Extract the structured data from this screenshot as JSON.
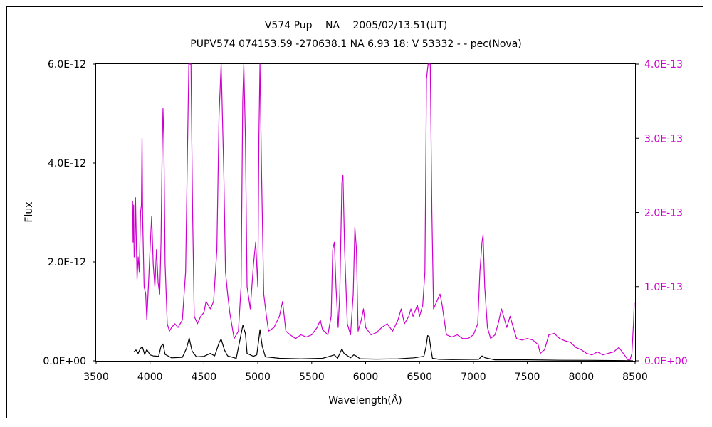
{
  "chart_data": {
    "type": "line",
    "title": "V574 Pup　 NA　 2005/02/13.51(UT)",
    "subtitle": "PUPV574 074153.59 -270638.1 NA 6.93 18: V 53332 - - pec(Nova)",
    "xlabel": "Wavelength(Å)",
    "ylabel": "Flux",
    "xlim": [
      3500,
      8500
    ],
    "ylim_left": [
      0,
      6e-12
    ],
    "ylim_right": [
      0,
      4e-13
    ],
    "x_ticks": [
      "3500",
      "4000",
      "4500",
      "5000",
      "5500",
      "6000",
      "6500",
      "7000",
      "7500",
      "8000",
      "8500"
    ],
    "y_ticks_left": [
      "0.0E+00",
      "2.0E-12",
      "4.0E-12",
      "6.0E-12"
    ],
    "y_ticks_right": [
      "0.0E+00",
      "1.0E-13",
      "2.0E-13",
      "3.0E-13",
      "4.0E-13"
    ],
    "grid": false,
    "series": [
      {
        "axis": "left",
        "color": "#000000",
        "points": [
          [
            3850,
            1.8e-13
          ],
          [
            3870,
            2.2e-13
          ],
          [
            3890,
            1.5e-13
          ],
          [
            3910,
            2.5e-13
          ],
          [
            3930,
            2.8e-13
          ],
          [
            3950,
            1.3e-13
          ],
          [
            3970,
            2.3e-13
          ],
          [
            4000,
            1.2e-13
          ],
          [
            4030,
            1e-13
          ],
          [
            4080,
            9e-14
          ],
          [
            4102,
            2.9e-13
          ],
          [
            4120,
            3.4e-13
          ],
          [
            4140,
            1.3e-13
          ],
          [
            4200,
            6e-14
          ],
          [
            4300,
            7e-14
          ],
          [
            4340,
            2.6e-13
          ],
          [
            4363,
            4.6e-13
          ],
          [
            4390,
            2e-13
          ],
          [
            4430,
            8e-14
          ],
          [
            4500,
            9e-14
          ],
          [
            4560,
            1.5e-13
          ],
          [
            4600,
            1e-13
          ],
          [
            4640,
            3.6e-13
          ],
          [
            4660,
            4.4e-13
          ],
          [
            4690,
            2.2e-13
          ],
          [
            4720,
            1e-13
          ],
          [
            4800,
            5e-14
          ],
          [
            4861,
            7.2e-13
          ],
          [
            4885,
            5.5e-13
          ],
          [
            4900,
            1.5e-13
          ],
          [
            4959,
            9e-14
          ],
          [
            4990,
            1.2e-13
          ],
          [
            5007,
            4e-13
          ],
          [
            5020,
            6.3e-13
          ],
          [
            5040,
            3e-13
          ],
          [
            5070,
            8e-14
          ],
          [
            5200,
            5e-14
          ],
          [
            5400,
            4e-14
          ],
          [
            5600,
            5e-14
          ],
          [
            5680,
            1e-13
          ],
          [
            5710,
            1.2e-13
          ],
          [
            5740,
            5e-14
          ],
          [
            5780,
            2.4e-13
          ],
          [
            5800,
            1.5e-13
          ],
          [
            5860,
            6e-14
          ],
          [
            5890,
            1.2e-13
          ],
          [
            5910,
            1e-13
          ],
          [
            5950,
            4e-14
          ],
          [
            6100,
            3.5e-14
          ],
          [
            6300,
            4e-14
          ],
          [
            6450,
            6e-14
          ],
          [
            6540,
            9e-14
          ],
          [
            6560,
            2.8e-13
          ],
          [
            6575,
            5.1e-13
          ],
          [
            6590,
            4.9e-13
          ],
          [
            6605,
            2.5e-13
          ],
          [
            6620,
            5e-14
          ],
          [
            6680,
            3e-14
          ],
          [
            6800,
            2.5e-14
          ],
          [
            7050,
            3e-14
          ],
          [
            7080,
            1e-13
          ],
          [
            7110,
            6e-14
          ],
          [
            7200,
            2e-14
          ],
          [
            7500,
            2e-14
          ],
          [
            7800,
            1.2e-14
          ],
          [
            8100,
            1e-14
          ],
          [
            8400,
            5e-15
          ],
          [
            8480,
            0.0
          ]
        ]
      },
      {
        "axis": "right",
        "color": "#cc00cc",
        "points": [
          [
            3838,
            2.15e-13
          ],
          [
            3843,
            1.6e-13
          ],
          [
            3848,
            2.1e-13
          ],
          [
            3853,
            1.4e-13
          ],
          [
            3860,
            1.5e-13
          ],
          [
            3865,
            2.2e-13
          ],
          [
            3872,
            1.7e-13
          ],
          [
            3880,
            1.1e-13
          ],
          [
            3890,
            1.4e-13
          ],
          [
            3900,
            1.2e-13
          ],
          [
            3912,
            2e-13
          ],
          [
            3920,
            2.1e-13
          ],
          [
            3926,
            3e-13
          ],
          [
            3932,
            1.9e-13
          ],
          [
            3945,
            1e-13
          ],
          [
            3960,
            9e-14
          ],
          [
            3970,
            5.5e-14
          ],
          [
            3985,
            1e-13
          ],
          [
            4000,
            1.5e-13
          ],
          [
            4015,
            1.95e-13
          ],
          [
            4030,
            1.3e-13
          ],
          [
            4045,
            1e-13
          ],
          [
            4060,
            1.5e-13
          ],
          [
            4075,
            1.05e-13
          ],
          [
            4090,
            9e-14
          ],
          [
            4102,
            1.6e-13
          ],
          [
            4112,
            2.8e-13
          ],
          [
            4120,
            3.4e-13
          ],
          [
            4128,
            3e-13
          ],
          [
            4140,
            1.3e-13
          ],
          [
            4160,
            5e-14
          ],
          [
            4180,
            4e-14
          ],
          [
            4200,
            4.5e-14
          ],
          [
            4230,
            5e-14
          ],
          [
            4260,
            4.5e-14
          ],
          [
            4300,
            5.5e-14
          ],
          [
            4330,
            1.2e-13
          ],
          [
            4345,
            2.6e-13
          ],
          [
            4360,
            4e-13
          ],
          [
            4380,
            4e-13
          ],
          [
            4395,
            2e-13
          ],
          [
            4410,
            6e-14
          ],
          [
            4440,
            5e-14
          ],
          [
            4470,
            6e-14
          ],
          [
            4500,
            6.5e-14
          ],
          [
            4520,
            8e-14
          ],
          [
            4560,
            7e-14
          ],
          [
            4590,
            8e-14
          ],
          [
            4620,
            1.5e-13
          ],
          [
            4640,
            3.3e-13
          ],
          [
            4660,
            4e-13
          ],
          [
            4685,
            2.5e-13
          ],
          [
            4700,
            1.2e-13
          ],
          [
            4720,
            9e-14
          ],
          [
            4740,
            6.5e-14
          ],
          [
            4780,
            3e-14
          ],
          [
            4820,
            4e-14
          ],
          [
            4845,
            1e-13
          ],
          [
            4860,
            3.5e-13
          ],
          [
            4870,
            4e-13
          ],
          [
            4885,
            3e-13
          ],
          [
            4900,
            1e-13
          ],
          [
            4930,
            7e-14
          ],
          [
            4960,
            1.3e-13
          ],
          [
            4980,
            1.6e-13
          ],
          [
            5000,
            1e-13
          ],
          [
            5010,
            3e-13
          ],
          [
            5020,
            4e-13
          ],
          [
            5035,
            2.5e-13
          ],
          [
            5055,
            9e-14
          ],
          [
            5080,
            6e-14
          ],
          [
            5100,
            4e-14
          ],
          [
            5150,
            4.5e-14
          ],
          [
            5200,
            6e-14
          ],
          [
            5230,
            8e-14
          ],
          [
            5260,
            4e-14
          ],
          [
            5300,
            3.5e-14
          ],
          [
            5350,
            3e-14
          ],
          [
            5400,
            3.5e-14
          ],
          [
            5450,
            3.2e-14
          ],
          [
            5500,
            3.5e-14
          ],
          [
            5550,
            4.5e-14
          ],
          [
            5580,
            5.5e-14
          ],
          [
            5600,
            4.2e-14
          ],
          [
            5650,
            3.5e-14
          ],
          [
            5680,
            6e-14
          ],
          [
            5695,
            1.5e-13
          ],
          [
            5710,
            1.6e-13
          ],
          [
            5725,
            1e-13
          ],
          [
            5745,
            4.5e-14
          ],
          [
            5760,
            9e-14
          ],
          [
            5780,
            2.4e-13
          ],
          [
            5790,
            2.5e-13
          ],
          [
            5805,
            1.5e-13
          ],
          [
            5830,
            5e-14
          ],
          [
            5860,
            3.5e-14
          ],
          [
            5885,
            9e-14
          ],
          [
            5900,
            1.8e-13
          ],
          [
            5915,
            1.5e-13
          ],
          [
            5930,
            4e-14
          ],
          [
            5960,
            5.5e-14
          ],
          [
            5980,
            7e-14
          ],
          [
            6000,
            4.5e-14
          ],
          [
            6050,
            3.5e-14
          ],
          [
            6100,
            3.8e-14
          ],
          [
            6150,
            4.5e-14
          ],
          [
            6200,
            5e-14
          ],
          [
            6250,
            4e-14
          ],
          [
            6300,
            5.5e-14
          ],
          [
            6330,
            7e-14
          ],
          [
            6360,
            5e-14
          ],
          [
            6400,
            6e-14
          ],
          [
            6420,
            7e-14
          ],
          [
            6440,
            6e-14
          ],
          [
            6480,
            7.5e-14
          ],
          [
            6500,
            6e-14
          ],
          [
            6530,
            7.5e-14
          ],
          [
            6550,
            1.2e-13
          ],
          [
            6565,
            3.8e-13
          ],
          [
            6580,
            4e-13
          ],
          [
            6600,
            4e-13
          ],
          [
            6615,
            2e-13
          ],
          [
            6630,
            7e-14
          ],
          [
            6660,
            8e-14
          ],
          [
            6690,
            9e-14
          ],
          [
            6710,
            7.5e-14
          ],
          [
            6750,
            3.5e-14
          ],
          [
            6800,
            3.2e-14
          ],
          [
            6850,
            3.5e-14
          ],
          [
            6900,
            3e-14
          ],
          [
            6950,
            3e-14
          ],
          [
            7000,
            3.5e-14
          ],
          [
            7040,
            5e-14
          ],
          [
            7060,
            1.2e-13
          ],
          [
            7080,
            1.6e-13
          ],
          [
            7090,
            1.7e-13
          ],
          [
            7105,
            1e-13
          ],
          [
            7130,
            4.5e-14
          ],
          [
            7160,
            3e-14
          ],
          [
            7200,
            3.5e-14
          ],
          [
            7230,
            5e-14
          ],
          [
            7260,
            7e-14
          ],
          [
            7280,
            6e-14
          ],
          [
            7310,
            4.5e-14
          ],
          [
            7340,
            6e-14
          ],
          [
            7360,
            5e-14
          ],
          [
            7400,
            3e-14
          ],
          [
            7450,
            2.8e-14
          ],
          [
            7500,
            3e-14
          ],
          [
            7550,
            2.8e-14
          ],
          [
            7600,
            2.2e-14
          ],
          [
            7620,
            1e-14
          ],
          [
            7660,
            1.5e-14
          ],
          [
            7700,
            3.5e-14
          ],
          [
            7750,
            3.7e-14
          ],
          [
            7800,
            3e-14
          ],
          [
            7850,
            2.7e-14
          ],
          [
            7900,
            2.5e-14
          ],
          [
            7950,
            1.8e-14
          ],
          [
            8000,
            1.5e-14
          ],
          [
            8050,
            1e-14
          ],
          [
            8100,
            8e-15
          ],
          [
            8150,
            1.2e-14
          ],
          [
            8200,
            8e-15
          ],
          [
            8250,
            1e-14
          ],
          [
            8300,
            1.2e-14
          ],
          [
            8350,
            1.8e-14
          ],
          [
            8400,
            8e-15
          ],
          [
            8430,
            2e-15
          ],
          [
            8450,
            0.0
          ],
          [
            8470,
            1e-14
          ],
          [
            8485,
            5e-14
          ],
          [
            8492,
            7.8e-14
          ]
        ]
      }
    ]
  }
}
